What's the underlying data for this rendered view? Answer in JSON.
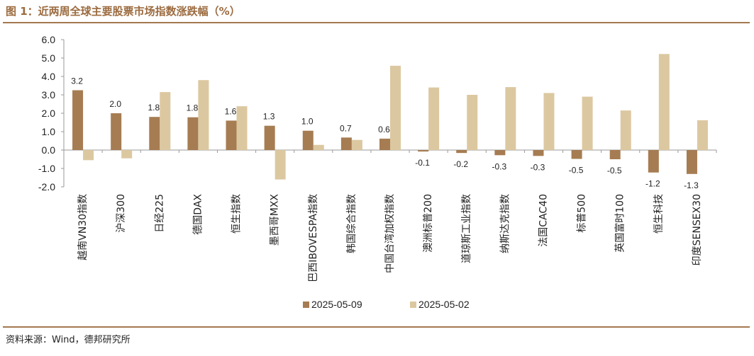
{
  "header": {
    "title": "图 1：近两周全球主要股票市场指数涨跌幅（%）"
  },
  "footer": {
    "source": "资料来源：Wind，德邦研究所"
  },
  "chart_data": {
    "type": "bar",
    "title": "",
    "xlabel": "",
    "ylabel": "",
    "ylim": [
      -2.0,
      6.0
    ],
    "yticks": [
      -2.0,
      -1.0,
      0.0,
      1.0,
      2.0,
      3.0,
      4.0,
      5.0,
      6.0
    ],
    "ytick_labels": [
      "-2.0",
      "-1.0",
      "0.0",
      "1.0",
      "2.0",
      "3.0",
      "4.0",
      "5.0",
      "6.0"
    ],
    "grid": false,
    "legend_position": "bottom",
    "categories": [
      "越南VN30指数",
      "沪深300",
      "日经225",
      "德国DAX",
      "恒生指数",
      "墨西哥MXX",
      "巴西IBOVESPA指数",
      "韩国综合指数",
      "中国台湾加权指数",
      "澳洲标普200",
      "道琼斯工业指数",
      "纳斯达克指数",
      "法国CAC40",
      "标普500",
      "英国富时100",
      "恒生科技",
      "印度SENSEX30"
    ],
    "series": [
      {
        "name": "2025-05-09",
        "color": "#a67c52",
        "values": [
          3.25,
          2.0,
          1.8,
          1.78,
          1.6,
          1.32,
          1.05,
          0.68,
          0.62,
          -0.08,
          -0.16,
          -0.28,
          -0.32,
          -0.48,
          -0.5,
          -1.22,
          -1.3
        ],
        "data_labels": [
          "3.2",
          "2.0",
          "1.8",
          "1.8",
          "1.6",
          "1.3",
          "1.0",
          "0.7",
          "0.6",
          "-0.1",
          "-0.2",
          "-0.3",
          "-0.3",
          "-0.5",
          "-0.5",
          "-1.2",
          "-1.3"
        ]
      },
      {
        "name": "2025-05-02",
        "color": "#dcc8a0",
        "values": [
          -0.55,
          -0.45,
          3.15,
          3.8,
          2.38,
          -1.6,
          0.28,
          0.55,
          4.58,
          3.4,
          3.0,
          3.42,
          3.1,
          2.9,
          2.15,
          5.22,
          1.62
        ]
      }
    ]
  }
}
